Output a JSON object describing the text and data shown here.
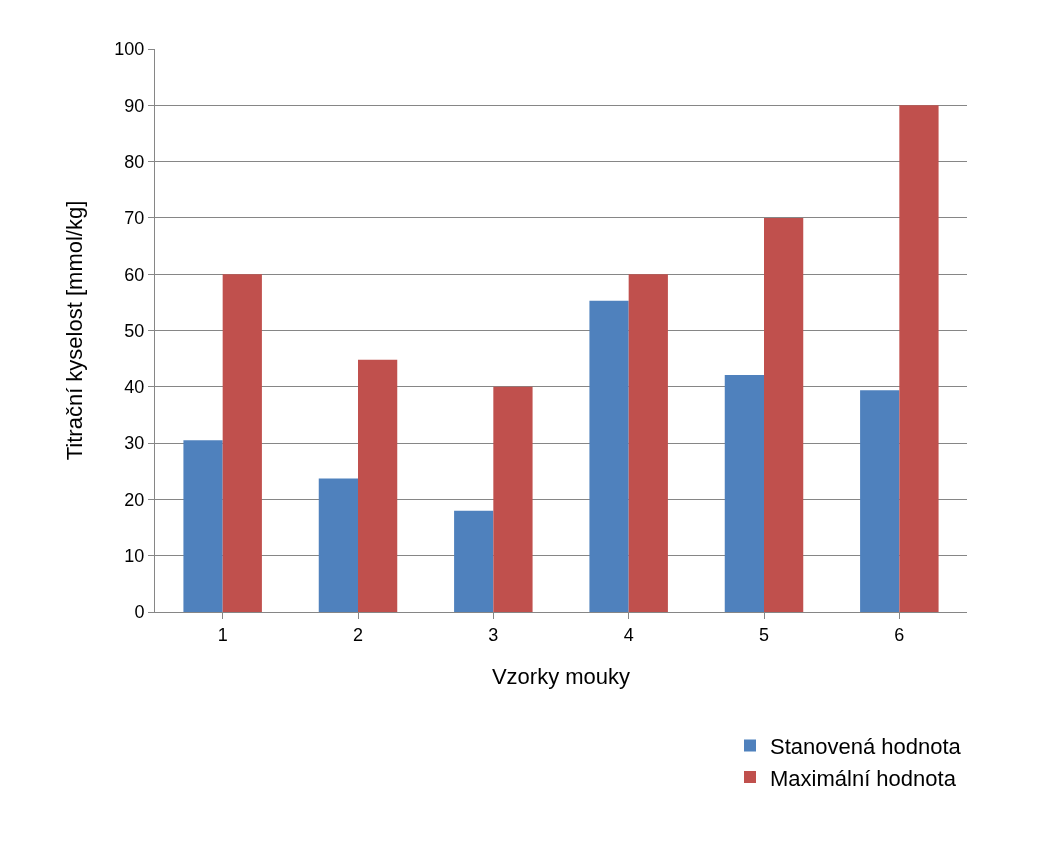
{
  "chart_data": {
    "type": "bar",
    "xlabel": "Vzorky mouky",
    "ylabel": "Titrační kyselost [mmol/kg]",
    "categories": [
      "1",
      "2",
      "3",
      "4",
      "5",
      "6"
    ],
    "series": [
      {
        "name": "Stanovená hodnota",
        "color": "#4f81bd",
        "values": [
          30.5,
          23.7,
          18,
          55.3,
          42.1,
          39.4
        ]
      },
      {
        "name": "Maximální hodnota",
        "color": "#c0504d",
        "values": [
          60,
          44.8,
          40,
          60,
          70,
          90
        ]
      }
    ],
    "ylim": [
      0,
      100
    ],
    "yticks": [
      0,
      10,
      20,
      30,
      40,
      50,
      60,
      70,
      80,
      90,
      100
    ],
    "grid": "y",
    "legend": "bottom right"
  }
}
